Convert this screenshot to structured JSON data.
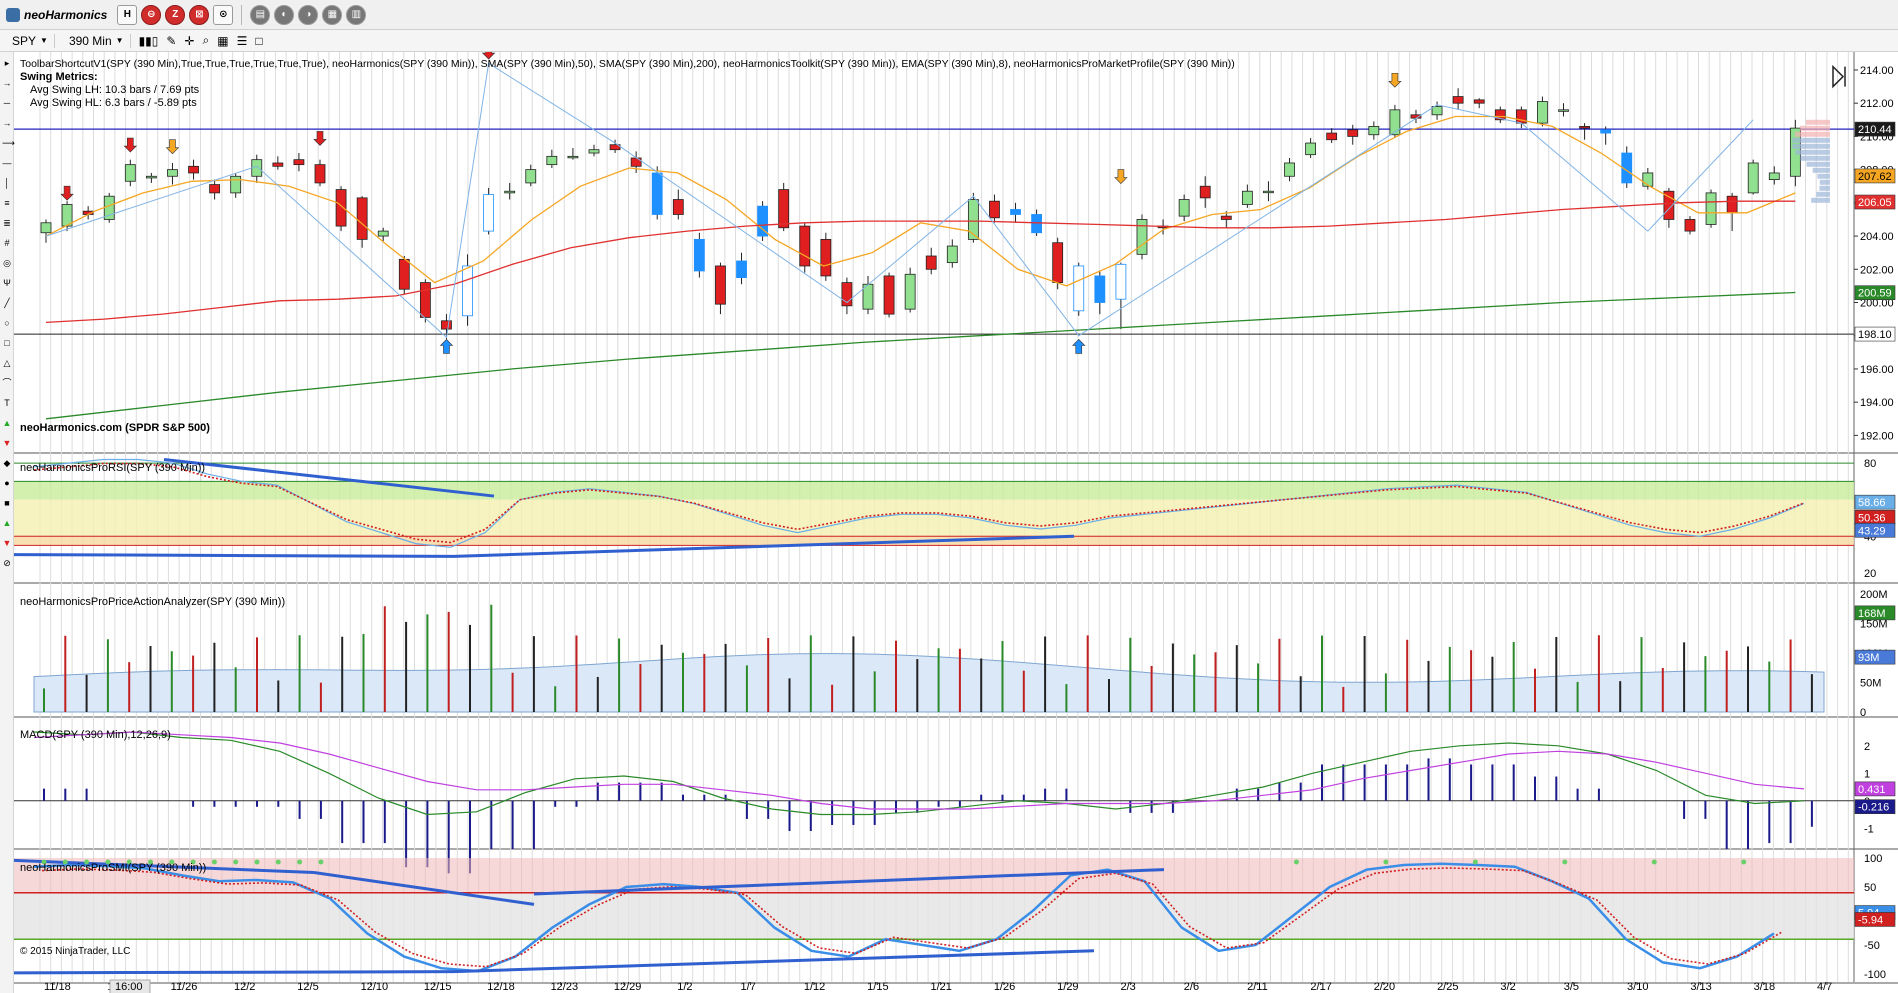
{
  "app": {
    "title": "neoHarmonics"
  },
  "toolbar": {
    "instrument": "SPY",
    "interval": "390 Min",
    "buttons": [
      "H",
      "⊖",
      "Z",
      "⊠",
      "⊙",
      "▤",
      "◐",
      "◑",
      "▦",
      "▥"
    ]
  },
  "main_panel": {
    "indicator_line": "ToolbarShortcutV1(SPY (390 Min),True,True,True,True,True,True), neoHarmonics(SPY (390 Min)), SMA(SPY (390 Min),50), SMA(SPY (390 Min),200), neoHarmonicsToolkit(SPY (390 Min)), EMA(SPY (390 Min),8), neoHarmonicsProMarketProfile(SPY (390 Min))",
    "swing_title": "Swing Metrics:",
    "swing_lh": "Avg Swing LH: 10.3 bars / 7.69 pts",
    "swing_hl": "Avg Swing HL: 6.3 bars / -5.89 pts",
    "footer_label": "neoHarmonics.com (SPDR S&P 500)",
    "y_ticks": [
      "214.00",
      "212.00",
      "210.00",
      "208.00",
      "206.00",
      "204.00",
      "202.00",
      "200.00",
      "198.00",
      "196.00",
      "194.00",
      "192.00"
    ],
    "badges": {
      "price": "210.44",
      "ema": "207.62",
      "sma50": "206.05",
      "sma200": "200.59",
      "support": "198.10"
    }
  },
  "rsi_panel": {
    "label": "neoHarmonicsProRSI(SPY (390 Min))",
    "y_ticks": [
      "80",
      "60",
      "40",
      "20"
    ],
    "badges": [
      "58.66",
      "50.36",
      "43.29"
    ]
  },
  "pa_panel": {
    "label": "neoHarmonicsProPriceActionAnalyzer(SPY (390 Min))",
    "y_ticks": [
      "200M",
      "150M",
      "100M",
      "50M",
      "0"
    ],
    "badges": [
      "168M",
      "93M"
    ]
  },
  "macd_panel": {
    "label": "MACD(SPY (390 Min),12,26,9)",
    "y_ticks": [
      "2",
      "1",
      "0",
      "-1"
    ],
    "badges": [
      "0.431",
      "-0.216"
    ]
  },
  "smi_panel": {
    "label": "neoHarmonicsProSMI(SPY (390 Min))",
    "y_ticks": [
      "100",
      "50",
      "0",
      "-50",
      "-100"
    ],
    "badges": [
      "5.94",
      "-5.94"
    ]
  },
  "copyright": "© 2015 NinjaTrader, LLC",
  "x_axis": {
    "labels": [
      "11/18",
      "11/21",
      "11/26",
      "12/2",
      "12/5",
      "12/10",
      "12/15",
      "12/18",
      "12/23",
      "12/29",
      "1/2",
      "1/7",
      "1/12",
      "1/15",
      "1/21",
      "1/26",
      "1/29",
      "2/3",
      "2/6",
      "2/11",
      "2/17",
      "2/20",
      "2/25",
      "3/2",
      "3/5",
      "3/10",
      "3/13",
      "3/18",
      "4/7"
    ],
    "cursor_label": "16:00"
  },
  "colors": {
    "up": "#90e090",
    "down": "#e02020",
    "hollow_up": "#1e90ff",
    "ema": "#f5a623",
    "sma50": "#e03030",
    "sma200": "#2a8a2a",
    "resistance": "#2020c0"
  }
}
